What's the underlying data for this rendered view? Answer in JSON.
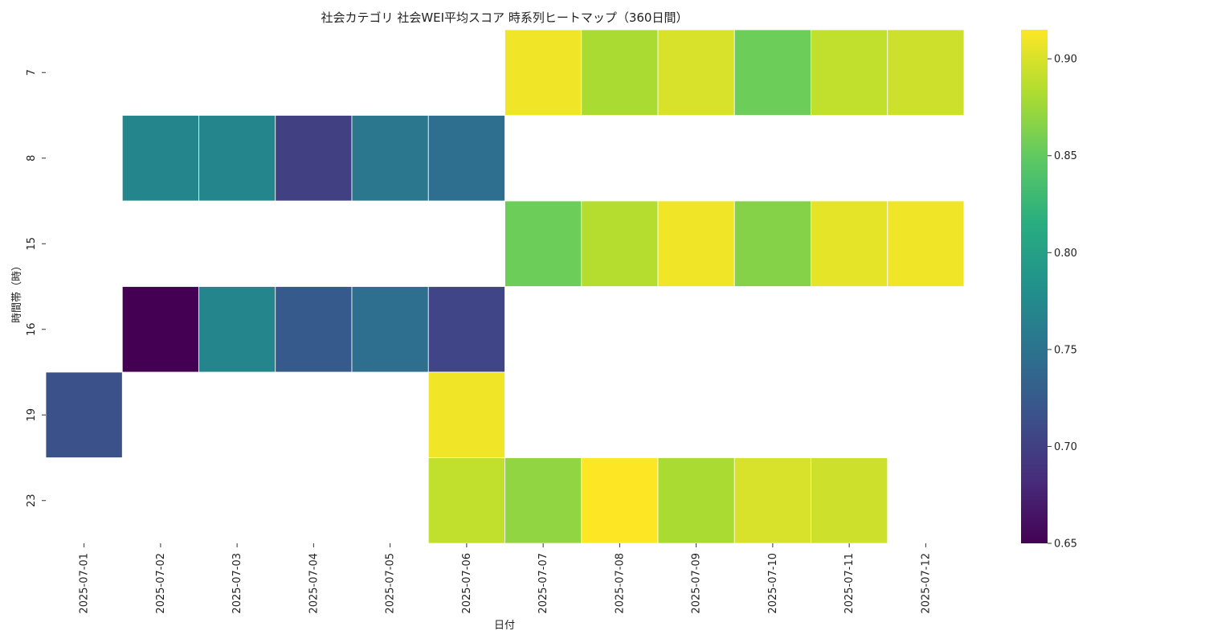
{
  "chart_data": {
    "type": "heatmap",
    "title": "社会カテゴリ 社会WEI平均スコア 時系列ヒートマップ（360日間）",
    "xlabel": "日付",
    "ylabel": "時間帯（時）",
    "x": [
      "2025-07-01",
      "2025-07-02",
      "2025-07-03",
      "2025-07-04",
      "2025-07-05",
      "2025-07-06",
      "2025-07-07",
      "2025-07-08",
      "2025-07-09",
      "2025-07-10",
      "2025-07-11",
      "2025-07-12"
    ],
    "y": [
      "7",
      "8",
      "15",
      "16",
      "19",
      "23"
    ],
    "values": [
      [
        null,
        null,
        null,
        null,
        null,
        null,
        0.91,
        0.88,
        0.9,
        0.855,
        0.89,
        0.895
      ],
      [
        null,
        0.77,
        0.77,
        0.7,
        0.755,
        0.745,
        null,
        null,
        null,
        null,
        null,
        null
      ],
      [
        null,
        null,
        null,
        null,
        null,
        null,
        0.855,
        0.885,
        0.91,
        0.865,
        0.905,
        0.91
      ],
      [
        null,
        0.65,
        0.77,
        0.725,
        0.745,
        0.705,
        null,
        null,
        null,
        null,
        null,
        null
      ],
      [
        0.715,
        null,
        null,
        null,
        null,
        0.91,
        null,
        null,
        null,
        null,
        null,
        null
      ],
      [
        null,
        null,
        null,
        null,
        null,
        0.89,
        0.87,
        0.915,
        0.88,
        0.9,
        0.895,
        null
      ]
    ],
    "colormap": "viridis",
    "colorbar": {
      "range": [
        0.65,
        0.915
      ],
      "ticks": [
        "0.65",
        "0.70",
        "0.75",
        "0.80",
        "0.85",
        "0.90"
      ]
    },
    "grid": false
  }
}
